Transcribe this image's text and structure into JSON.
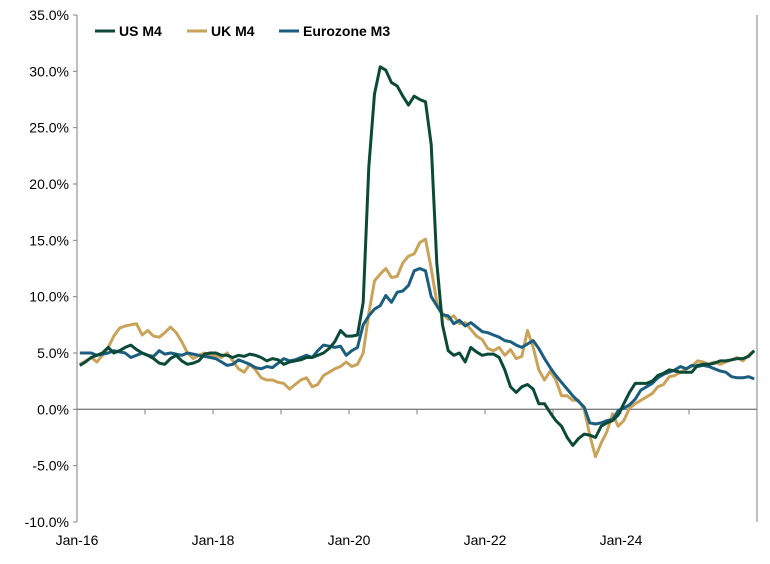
{
  "chart_data": {
    "type": "line",
    "title": "",
    "xlabel": "",
    "ylabel": "",
    "ylim": [
      -10,
      35
    ],
    "start_month": "Jan-16",
    "frequency": "monthly",
    "x_tick_labels": [
      "Jan-16",
      "Jan-18",
      "Jan-20",
      "Jan-22",
      "Jan-24"
    ],
    "y_tick_labels": [
      "35.0%",
      "30.0%",
      "25.0%",
      "20.0%",
      "15.0%",
      "10.0%",
      "5.0%",
      "0.0%",
      "-5.0%",
      "-10.0%"
    ],
    "legend_position": "top-left",
    "series": [
      {
        "name": "US M4",
        "color": "#0c4a38",
        "values": [
          3.9,
          4.2,
          4.6,
          4.8,
          5.0,
          5.5,
          5.0,
          5.2,
          5.5,
          5.7,
          5.3,
          5.0,
          4.8,
          4.5,
          4.1,
          4.0,
          4.5,
          4.8,
          4.3,
          4.0,
          4.1,
          4.3,
          4.9,
          5.0,
          5.0,
          4.8,
          4.8,
          4.6,
          4.8,
          4.7,
          4.9,
          4.8,
          4.6,
          4.3,
          4.5,
          4.4,
          4.0,
          4.2,
          4.3,
          4.4,
          4.6,
          4.6,
          4.8,
          5.0,
          5.4,
          6.0,
          7.0,
          6.5,
          6.5,
          6.6,
          9.5,
          21.5,
          28.0,
          30.4,
          30.1,
          29.0,
          28.7,
          27.8,
          27.0,
          27.8,
          27.5,
          27.3,
          23.5,
          13.0,
          7.5,
          5.2,
          4.8,
          5.0,
          4.2,
          5.5,
          5.1,
          4.8,
          4.9,
          4.9,
          4.6,
          3.5,
          2.0,
          1.5,
          2.0,
          2.2,
          1.8,
          0.5,
          0.5,
          -0.3,
          -1.0,
          -1.5,
          -2.5,
          -3.2,
          -2.6,
          -2.2,
          -2.3,
          -2.5,
          -1.5,
          -1.2,
          -1.0,
          -0.5,
          0.5,
          1.5,
          2.3,
          2.3,
          2.3,
          2.5,
          3.0,
          3.2,
          3.5,
          3.4,
          3.3,
          3.3,
          3.3,
          3.9,
          4.0,
          4.0,
          4.1,
          4.3,
          4.3,
          4.4,
          4.5,
          4.5,
          4.7,
          5.2
        ]
      },
      {
        "name": "UK M4",
        "color": "#c9a35a",
        "values": [
          4.0,
          4.3,
          4.6,
          4.2,
          4.8,
          5.5,
          6.5,
          7.2,
          7.4,
          7.5,
          7.6,
          6.6,
          7.0,
          6.5,
          6.4,
          6.8,
          7.3,
          6.8,
          6.0,
          5.0,
          4.5,
          4.8,
          5.0,
          4.8,
          4.8,
          4.6,
          5.0,
          4.3,
          3.6,
          3.3,
          4.0,
          3.5,
          2.8,
          2.6,
          2.6,
          2.4,
          2.3,
          1.8,
          2.2,
          2.6,
          2.8,
          2.0,
          2.2,
          3.0,
          3.3,
          3.6,
          3.8,
          4.2,
          3.8,
          4.0,
          5.0,
          8.5,
          11.4,
          12.0,
          12.5,
          11.7,
          11.8,
          13.0,
          13.6,
          13.8,
          14.8,
          15.1,
          12.5,
          9.5,
          8.5,
          8.0,
          8.3,
          7.6,
          7.7,
          7.1,
          6.5,
          6.2,
          5.4,
          5.2,
          5.5,
          4.8,
          5.3,
          4.5,
          4.7,
          7.0,
          5.5,
          3.5,
          2.6,
          3.4,
          2.6,
          1.2,
          1.2,
          0.8,
          0.8,
          0.0,
          -2.3,
          -4.2,
          -3.0,
          -2.0,
          -0.4,
          -1.5,
          -1.0,
          0.1,
          0.5,
          0.8,
          1.1,
          1.4,
          2.0,
          2.2,
          2.9,
          3.0,
          3.3,
          3.6,
          3.8,
          4.3,
          4.2,
          4.0,
          4.2,
          4.0,
          4.2,
          4.4,
          4.6,
          4.3,
          4.8,
          5.2
        ]
      },
      {
        "name": "Eurozone M3",
        "color": "#1c5e80",
        "values": [
          5.0,
          5.0,
          5.0,
          4.8,
          4.9,
          5.0,
          5.2,
          5.1,
          5.0,
          4.6,
          4.8,
          5.0,
          4.8,
          4.7,
          5.2,
          4.9,
          5.0,
          4.9,
          4.8,
          5.0,
          4.9,
          4.8,
          4.7,
          4.6,
          4.5,
          4.2,
          3.9,
          4.0,
          4.4,
          4.2,
          4.0,
          3.7,
          3.6,
          3.8,
          3.7,
          4.1,
          4.5,
          4.3,
          4.4,
          4.6,
          4.8,
          4.6,
          5.2,
          5.7,
          5.6,
          5.5,
          5.6,
          4.8,
          5.2,
          5.5,
          7.5,
          8.3,
          8.9,
          9.2,
          10.1,
          9.5,
          10.4,
          10.5,
          11.0,
          12.3,
          12.5,
          12.3,
          10.0,
          9.2,
          8.4,
          8.3,
          7.6,
          7.9,
          7.4,
          7.7,
          7.3,
          6.9,
          6.8,
          6.6,
          6.4,
          6.1,
          6.0,
          5.7,
          5.5,
          5.8,
          6.1,
          5.4,
          4.5,
          3.7,
          3.0,
          2.4,
          1.8,
          1.2,
          0.7,
          0.2,
          -1.2,
          -1.3,
          -1.2,
          -1.0,
          -0.9,
          -0.1,
          0.1,
          0.4,
          0.9,
          1.7,
          2.0,
          2.3,
          2.8,
          3.1,
          3.3,
          3.5,
          3.8,
          3.6,
          3.9,
          3.8,
          3.9,
          3.8,
          3.6,
          3.4,
          3.3,
          2.9,
          2.8,
          2.8,
          2.9,
          2.7
        ]
      }
    ]
  }
}
